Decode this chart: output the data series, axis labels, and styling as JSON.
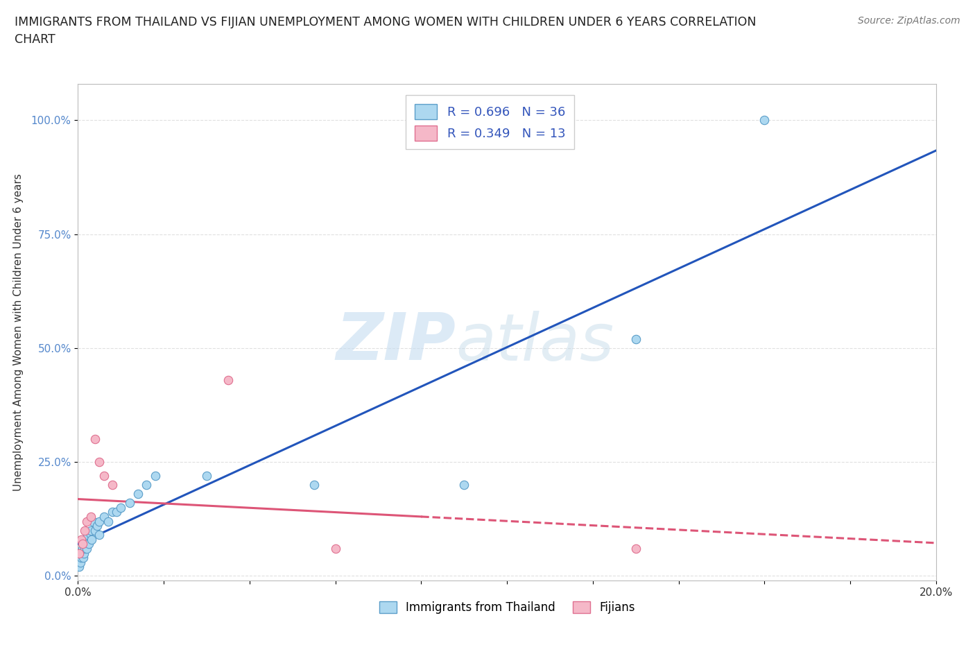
{
  "title": "IMMIGRANTS FROM THAILAND VS FIJIAN UNEMPLOYMENT AMONG WOMEN WITH CHILDREN UNDER 6 YEARS CORRELATION\nCHART",
  "source_text": "Source: ZipAtlas.com",
  "xlabel": "",
  "ylabel": "Unemployment Among Women with Children Under 6 years",
  "xmin": 0.0,
  "xmax": 0.2,
  "ymin": -0.01,
  "ymax": 1.08,
  "yticks": [
    0.0,
    0.25,
    0.5,
    0.75,
    1.0
  ],
  "ytick_labels": [
    "0.0%",
    "25.0%",
    "50.0%",
    "75.0%",
    "100.0%"
  ],
  "xticks": [
    0.0,
    0.02,
    0.04,
    0.06,
    0.08,
    0.1,
    0.12,
    0.14,
    0.16,
    0.18,
    0.2
  ],
  "xtick_labels": [
    "0.0%",
    "",
    "",
    "",
    "",
    "",
    "",
    "",
    "",
    "",
    "20.0%"
  ],
  "thailand_x": [
    0.0003,
    0.0005,
    0.0007,
    0.001,
    0.001,
    0.0012,
    0.0013,
    0.0015,
    0.0015,
    0.0017,
    0.002,
    0.002,
    0.0022,
    0.0025,
    0.003,
    0.003,
    0.0032,
    0.0035,
    0.004,
    0.0045,
    0.005,
    0.005,
    0.006,
    0.007,
    0.008,
    0.009,
    0.01,
    0.012,
    0.014,
    0.016,
    0.018,
    0.03,
    0.055,
    0.09,
    0.13,
    0.16
  ],
  "thailand_y": [
    0.02,
    0.03,
    0.04,
    0.05,
    0.06,
    0.04,
    0.05,
    0.06,
    0.08,
    0.07,
    0.06,
    0.08,
    0.09,
    0.07,
    0.09,
    0.1,
    0.08,
    0.12,
    0.1,
    0.11,
    0.09,
    0.12,
    0.13,
    0.12,
    0.14,
    0.14,
    0.15,
    0.16,
    0.18,
    0.2,
    0.22,
    0.22,
    0.2,
    0.2,
    0.52,
    1.0
  ],
  "fijian_x": [
    0.0003,
    0.0008,
    0.001,
    0.0015,
    0.002,
    0.003,
    0.004,
    0.005,
    0.006,
    0.008,
    0.035,
    0.06,
    0.13
  ],
  "fijian_y": [
    0.05,
    0.08,
    0.07,
    0.1,
    0.12,
    0.13,
    0.3,
    0.25,
    0.22,
    0.2,
    0.43,
    0.06,
    0.06
  ],
  "thailand_color": "#ADD8F0",
  "fijian_color": "#F5B8C8",
  "thailand_edge_color": "#5B9EC9",
  "fijian_edge_color": "#E07090",
  "trend_thailand_color": "#2255BB",
  "trend_fijian_color": "#DD5577",
  "trend_fijian_solid_xmax": 0.08,
  "R_thailand": 0.696,
  "N_thailand": 36,
  "R_fijian": 0.349,
  "N_fijian": 13,
  "watermark_zip": "ZIP",
  "watermark_atlas": "atlas",
  "grid_color": "#DDDDDD",
  "background_color": "#FFFFFF",
  "legend_labels": [
    "Immigrants from Thailand",
    "Fijians"
  ],
  "legend_colors": [
    "#ADD8F0",
    "#F5B8C8"
  ],
  "legend_edge_colors": [
    "#5B9EC9",
    "#E07090"
  ]
}
